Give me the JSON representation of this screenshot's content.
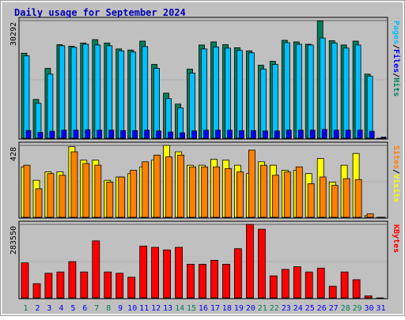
{
  "chart_data": {
    "type": "bar",
    "title": "Daily usage for September 2024",
    "categories": [
      "1",
      "2",
      "3",
      "4",
      "5",
      "6",
      "7",
      "8",
      "9",
      "10",
      "11",
      "12",
      "13",
      "14",
      "15",
      "16",
      "17",
      "18",
      "19",
      "20",
      "21",
      "22",
      "23",
      "24",
      "25",
      "26",
      "27",
      "28",
      "29",
      "30",
      "31"
    ],
    "weekend_days": [
      "1",
      "7",
      "8",
      "14",
      "15",
      "21",
      "22",
      "28",
      "29"
    ],
    "colors": {
      "hits": "#00805c",
      "files": "#00c0ff",
      "pages": "#0000ff",
      "visits": "#ffff00",
      "sites": "#ff8000",
      "kbytes": "#ff0000",
      "weekday_label": "#0000ff",
      "weekend_label": "#00805c",
      "panel_bg": "#c0c0c0"
    },
    "panels": [
      {
        "key": "top",
        "ymax_label": "30292",
        "ymax": 30292,
        "ylabel_parts": [
          {
            "text": "Pages",
            "color": "#00c0ff"
          },
          {
            "text": "/",
            "color": "#000000"
          },
          {
            "text": "Files",
            "color": "#0000ff"
          },
          {
            "text": "/",
            "color": "#000000"
          },
          {
            "text": "Hits",
            "color": "#00805c"
          }
        ],
        "series": [
          {
            "name": "Hits",
            "color": "#00805c",
            "values": [
              21900,
              10000,
              18000,
              24100,
              23700,
              24500,
              25400,
              24500,
              23000,
              22700,
              25000,
              19000,
              11600,
              8800,
              17800,
              24000,
              24800,
              24100,
              23300,
              22500,
              18800,
              19800,
              25200,
              24800,
              24200,
              30200,
              25100,
              24000,
              25000,
              16500,
              0
            ]
          },
          {
            "name": "Files",
            "color": "#00c0ff",
            "values": [
              21200,
              9000,
              16500,
              23800,
              23400,
              24200,
              24000,
              23800,
              22500,
              22200,
              23600,
              18000,
              10200,
              7800,
              16800,
              23000,
              23500,
              23200,
              22600,
              22000,
              17800,
              19000,
              24600,
              24200,
              24000,
              25800,
              24500,
              23200,
              24000,
              16000,
              0
            ]
          },
          {
            "name": "Pages",
            "color": "#0000ff",
            "values": [
              2000,
              1500,
              1800,
              2100,
              2100,
              2200,
              2100,
              2100,
              2000,
              2000,
              2100,
              1900,
              1600,
              1400,
              1900,
              2100,
              2100,
              2100,
              2000,
              2000,
              1900,
              1900,
              2100,
              2100,
              2100,
              2300,
              2100,
              2100,
              2100,
              1800,
              300
            ]
          }
        ]
      },
      {
        "key": "middle",
        "ymax_label": "428",
        "ymax": 428,
        "ylabel_parts": [
          {
            "text": "Sites",
            "color": "#ff8000"
          },
          {
            "text": "/",
            "color": "#000000"
          },
          {
            "text": "Visits",
            "color": "#ffff00"
          }
        ],
        "series": [
          {
            "name": "Visits",
            "color": "#ffff00",
            "values": [
              300,
              220,
              270,
              270,
              420,
              340,
              340,
              220,
              240,
              260,
              300,
              340,
              428,
              390,
              310,
              310,
              345,
              340,
              310,
              260,
              330,
              310,
              280,
              280,
              260,
              350,
              210,
              310,
              380,
              10,
              0
            ]
          },
          {
            "name": "Sites",
            "color": "#ff8000",
            "values": [
              310,
              170,
              260,
              250,
              390,
              320,
              310,
              210,
              240,
              280,
              330,
              370,
              360,
              370,
              300,
              300,
              300,
              290,
              270,
              400,
              310,
              250,
              270,
              300,
              200,
              240,
              190,
              230,
              225,
              20,
              0
            ]
          }
        ]
      },
      {
        "key": "bottom",
        "ymax_label": "283550",
        "ymax": 283550,
        "ylabel_parts": [
          {
            "text": "KBytes",
            "color": "#ff0000"
          }
        ],
        "series": [
          {
            "name": "KBytes",
            "color": "#ff0000",
            "values": [
              135000,
              55000,
              95000,
              100000,
              140000,
              100000,
              220000,
              100000,
              95000,
              80000,
              200000,
              195000,
              185000,
              195000,
              130000,
              130000,
              145000,
              130000,
              190000,
              283550,
              265000,
              85000,
              110000,
              120000,
              100000,
              115000,
              45000,
              100000,
              70000,
              8000,
              0
            ]
          }
        ]
      }
    ]
  }
}
